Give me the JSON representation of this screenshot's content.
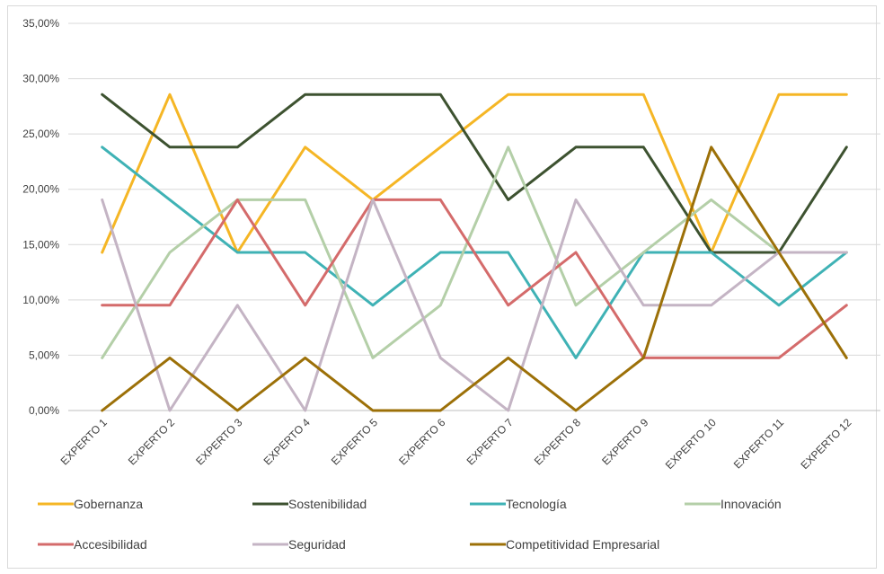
{
  "chart_data": {
    "type": "line",
    "categories": [
      "EXPERTO 1",
      "EXPERTO 2",
      "EXPERTO 3",
      "EXPERTO 4",
      "EXPERTO 5",
      "EXPERTO 6",
      "EXPERTO 7",
      "EXPERTO 8",
      "EXPERTO 9",
      "EXPERTO 10",
      "EXPERTO 11",
      "EXPERTO 12"
    ],
    "ylim": [
      0,
      0.35
    ],
    "yticks": [
      "0,00%",
      "5,00%",
      "10,00%",
      "15,00%",
      "20,00%",
      "25,00%",
      "30,00%",
      "35,00%"
    ],
    "grid": true,
    "legend_position": "bottom",
    "series": [
      {
        "name": "Gobernanza",
        "color": "#f5b625",
        "values": [
          0.1429,
          0.2857,
          0.1429,
          0.2381,
          0.1905,
          0.2381,
          0.2857,
          0.2857,
          0.2857,
          0.1429,
          0.2857,
          0.2857
        ]
      },
      {
        "name": "Sostenibilidad",
        "color": "#3d5230",
        "values": [
          0.2857,
          0.2381,
          0.2381,
          0.2857,
          0.2857,
          0.2857,
          0.1905,
          0.2381,
          0.2381,
          0.1429,
          0.1429,
          0.2381
        ]
      },
      {
        "name": "Tecnología",
        "color": "#3fb2b5",
        "values": [
          0.2381,
          0.1905,
          0.1429,
          0.1429,
          0.0952,
          0.1429,
          0.1429,
          0.0476,
          0.1429,
          0.1429,
          0.0952,
          0.1429
        ]
      },
      {
        "name": "Innovación",
        "color": "#b4cfa8",
        "values": [
          0.0476,
          0.1429,
          0.1905,
          0.1905,
          0.0476,
          0.0952,
          0.2381,
          0.0952,
          0.1429,
          0.1905,
          0.1429,
          0.1429
        ]
      },
      {
        "name": "Accesibilidad",
        "color": "#d46b6b",
        "values": [
          0.0952,
          0.0952,
          0.1905,
          0.0952,
          0.1905,
          0.1905,
          0.0952,
          0.1429,
          0.0476,
          0.0476,
          0.0476,
          0.0952
        ]
      },
      {
        "name": "Seguridad",
        "color": "#c4b4c4",
        "values": [
          0.1905,
          0.0,
          0.0952,
          0.0,
          0.1905,
          0.0476,
          0.0,
          0.1905,
          0.0952,
          0.0952,
          0.1429,
          0.1429
        ]
      },
      {
        "name": "Competitividad Empresarial",
        "color": "#9c7008",
        "values": [
          0.0,
          0.0476,
          0.0,
          0.0476,
          0.0,
          0.0,
          0.0476,
          0.0,
          0.0476,
          0.2381,
          0.1429,
          0.0476
        ]
      }
    ]
  }
}
